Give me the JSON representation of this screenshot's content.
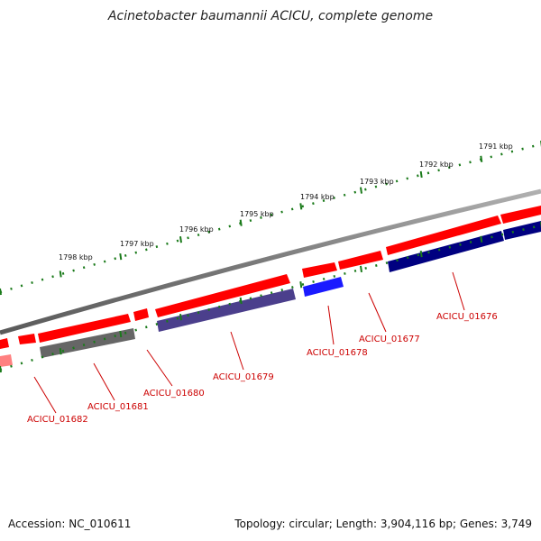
{
  "header": {
    "title": "Acinetobacter baumannii ACICU, complete genome"
  },
  "footer": {
    "accession": "Accession: NC_010611",
    "summary": "Topology: circular; Length: 3,904,116 bp; Genes: 3,749"
  },
  "colors": {
    "forward_cds": "#ff0000",
    "forward_cds_light": "#ff8080",
    "backbone": "#808080",
    "tick": "#1a7a1a",
    "label": "#cc0000",
    "rev_grey": "#666666",
    "rev_purple": "#4b3f8c",
    "rev_blue": "#1a1aff",
    "rev_navy": "#000080"
  },
  "scale_labels": [
    "1791 kbp",
    "1792 kbp",
    "1793 kbp",
    "1794 kbp",
    "1795 kbp",
    "1796 kbp",
    "1797 kbp",
    "1798 kbp"
  ],
  "gene_labels": [
    "ACICU_01676",
    "ACICU_01677",
    "ACICU_01678",
    "ACICU_01679",
    "ACICU_01680",
    "ACICU_01681",
    "ACICU_01682"
  ]
}
